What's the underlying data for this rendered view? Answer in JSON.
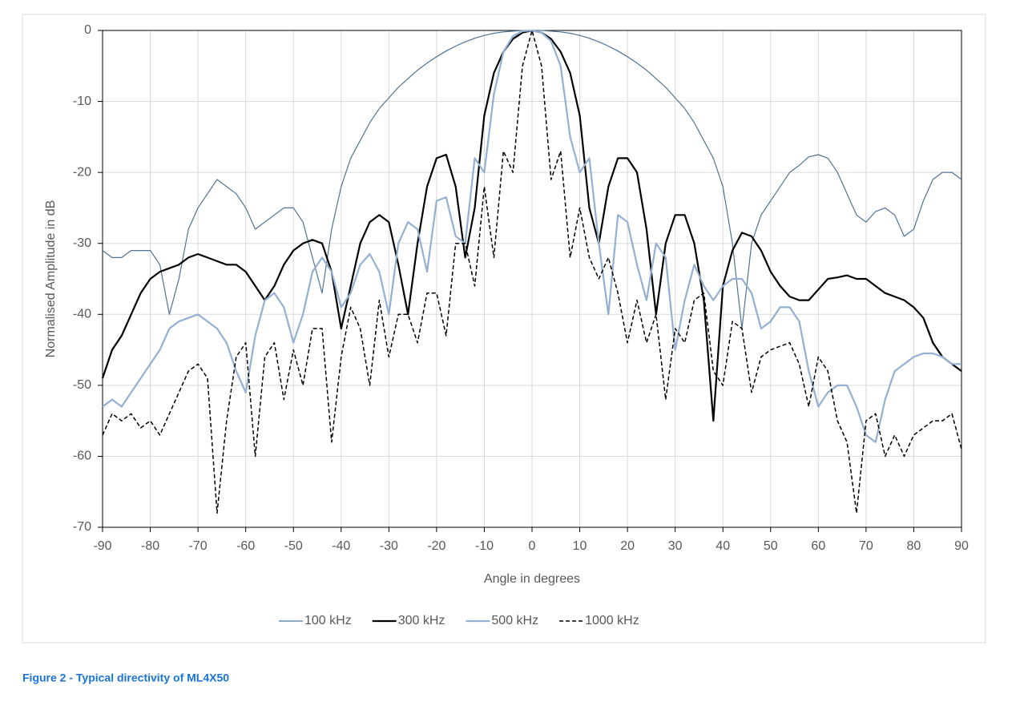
{
  "chart_data": {
    "type": "line",
    "xlabel": "Angle in degrees",
    "ylabel": "Normalised Amplitude in dB",
    "caption": "Figure 2 - Typical directivity of ML4X50",
    "xlim": [
      -90,
      90
    ],
    "ylim": [
      -70,
      0
    ],
    "xticks": [
      -90,
      -80,
      -70,
      -60,
      -50,
      -40,
      -30,
      -20,
      -10,
      0,
      10,
      20,
      30,
      40,
      50,
      60,
      70,
      80,
      90
    ],
    "yticks": [
      0,
      -10,
      -20,
      -30,
      -40,
      -50,
      -60,
      -70
    ],
    "grid": true,
    "legend": "bottom",
    "x": [
      -90,
      -88,
      -86,
      -84,
      -82,
      -80,
      -78,
      -76,
      -74,
      -72,
      -70,
      -68,
      -66,
      -64,
      -62,
      -60,
      -58,
      -56,
      -54,
      -52,
      -50,
      -48,
      -46,
      -44,
      -42,
      -40,
      -38,
      -36,
      -34,
      -32,
      -30,
      -28,
      -26,
      -24,
      -22,
      -20,
      -18,
      -16,
      -14,
      -12,
      -10,
      -8,
      -6,
      -4,
      -2,
      0,
      2,
      4,
      6,
      8,
      10,
      12,
      14,
      16,
      18,
      20,
      22,
      24,
      26,
      28,
      30,
      32,
      34,
      36,
      38,
      40,
      42,
      44,
      46,
      48,
      50,
      52,
      54,
      56,
      58,
      60,
      62,
      64,
      66,
      68,
      70,
      72,
      74,
      76,
      78,
      80,
      82,
      84,
      86,
      88,
      90
    ],
    "series": [
      {
        "name": "100 kHz",
        "color": "#4f7396",
        "width": 1.2,
        "dash": false,
        "values": [
          -31,
          -32,
          -32,
          -31,
          -31,
          -31,
          -33,
          -40,
          -35,
          -28,
          -25,
          -23,
          -21,
          -22,
          -23,
          -25,
          -28,
          -27,
          -26,
          -25,
          -25,
          -27,
          -32,
          -37,
          -28,
          -22,
          -18,
          -15.5,
          -13,
          -11,
          -9.5,
          -8,
          -6.8,
          -5.6,
          -4.6,
          -3.7,
          -2.9,
          -2.2,
          -1.6,
          -1.1,
          -0.7,
          -0.4,
          -0.2,
          -0.1,
          0,
          0,
          0,
          -0.1,
          -0.2,
          -0.4,
          -0.7,
          -1.1,
          -1.6,
          -2.2,
          -2.9,
          -3.7,
          -4.6,
          -5.6,
          -6.8,
          -8,
          -9.5,
          -11,
          -13,
          -15.5,
          -18,
          -22,
          -30,
          -42,
          -30,
          -26,
          -24,
          -22,
          -20,
          -19,
          -17.8,
          -17.5,
          -18,
          -20,
          -23,
          -26,
          -27,
          -25.5,
          -25,
          -26,
          -29,
          -28,
          -24,
          -21,
          -20,
          -20,
          -21
        ]
      },
      {
        "name": "300 kHz",
        "color": "#000000",
        "width": 2.2,
        "dash": false,
        "values": [
          -49,
          -45,
          -43,
          -40,
          -37,
          -35,
          -34,
          -33.5,
          -33,
          -32,
          -31.5,
          -32,
          -32.5,
          -33,
          -33,
          -34,
          -36,
          -38,
          -36,
          -33,
          -31,
          -30,
          -29.5,
          -30,
          -34,
          -42,
          -36,
          -30,
          -27,
          -26,
          -27,
          -33,
          -40,
          -30,
          -22,
          -18,
          -17.5,
          -22,
          -32,
          -25,
          -12,
          -6,
          -3,
          -1.2,
          -0.3,
          0,
          -0.3,
          -1.2,
          -3,
          -6,
          -12,
          -25,
          -30,
          -22,
          -18,
          -18,
          -20,
          -28,
          -40,
          -30,
          -26,
          -26,
          -30,
          -38,
          -55,
          -36,
          -31,
          -28.5,
          -29,
          -31,
          -34,
          -36,
          -37.5,
          -38,
          -38,
          -36.5,
          -35,
          -34.8,
          -34.5,
          -35,
          -35,
          -36,
          -37,
          -37.5,
          -38,
          -39,
          -40.5,
          -44,
          -46,
          -47,
          -48
        ]
      },
      {
        "name": "500 kHz",
        "color": "#93b0d2",
        "width": 2.2,
        "dash": false,
        "values": [
          -53,
          -52,
          -53,
          -51,
          -49,
          -47,
          -45,
          -42,
          -41,
          -40.5,
          -40,
          -41,
          -42,
          -44,
          -48,
          -51,
          -43,
          -38,
          -37,
          -39,
          -44,
          -40,
          -34,
          -32,
          -34,
          -39,
          -37,
          -33,
          -31.5,
          -34,
          -40,
          -30,
          -27,
          -28,
          -34,
          -24,
          -23.5,
          -29,
          -30,
          -18,
          -20,
          -9,
          -3,
          -0.8,
          -0.1,
          0,
          -0.3,
          -1.5,
          -5,
          -15,
          -20,
          -18,
          -30,
          -40,
          -26,
          -27,
          -33,
          -38,
          -30,
          -32,
          -45,
          -38,
          -33,
          -36,
          -38,
          -36,
          -35,
          -35,
          -37,
          -42,
          -41,
          -39,
          -39,
          -41,
          -48,
          -53,
          -51,
          -50,
          -50,
          -53,
          -57,
          -58,
          -52,
          -48,
          -47,
          -46,
          -45.5,
          -45.5,
          -46,
          -47,
          -47
        ]
      },
      {
        "name": "1000 kHz",
        "color": "#000000",
        "width": 1.5,
        "dash": true,
        "values": [
          -57,
          -54,
          -55,
          -54,
          -56,
          -55,
          -57,
          -54,
          -51,
          -48,
          -47,
          -49,
          -68,
          -55,
          -46,
          -44,
          -60,
          -46,
          -44,
          -52,
          -45,
          -50,
          -42,
          -42,
          -58,
          -46,
          -39,
          -42,
          -50,
          -38,
          -46,
          -40,
          -40,
          -44,
          -37,
          -37,
          -43,
          -30,
          -30,
          -36,
          -22,
          -32,
          -17,
          -20,
          -5,
          0,
          -5,
          -21,
          -17,
          -32,
          -25,
          -32,
          -35,
          -32,
          -37,
          -44,
          -38,
          -44,
          -40,
          -52,
          -42,
          -44,
          -38,
          -37,
          -48,
          -50,
          -41,
          -42,
          -51,
          -46,
          -45,
          -44.5,
          -44,
          -47,
          -53,
          -46,
          -48,
          -55,
          -58,
          -68,
          -55,
          -54,
          -60,
          -57,
          -60,
          -57,
          -56,
          -55,
          -55,
          -54,
          -59
        ]
      }
    ]
  }
}
